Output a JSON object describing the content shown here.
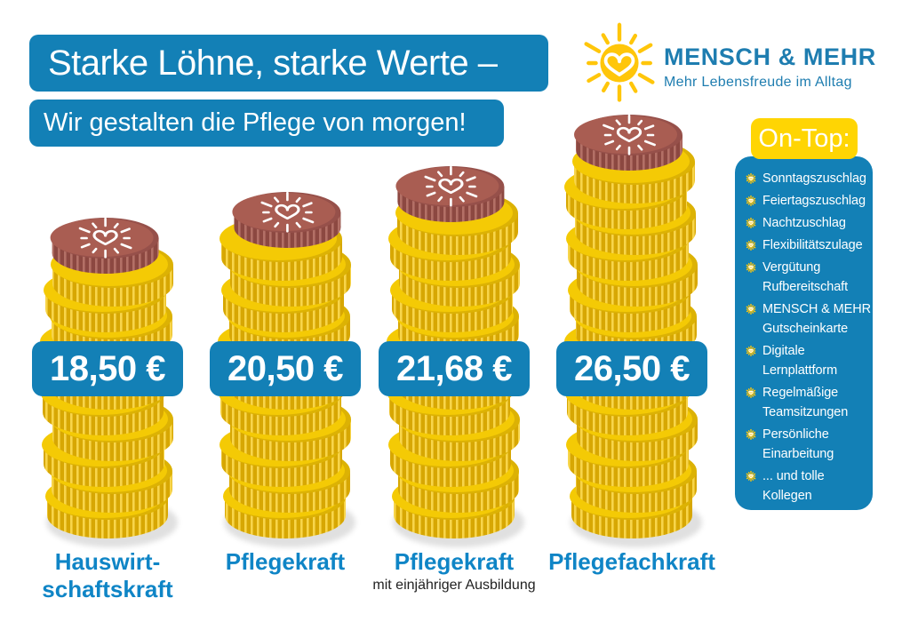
{
  "header": {
    "title": "Starke Löhne, starke Werte –",
    "subtitle": "Wir gestalten die Pflege von morgen!"
  },
  "logo": {
    "name": "MENSCH & MEHR",
    "tagline": "Mehr Lebensfreude im Alltag",
    "icon": "sun-heart-logo-icon"
  },
  "on_top": {
    "label": "On-Top:",
    "bullet_icon": "sun-heart-bullet-icon",
    "items": [
      "Sonntagszuschlag",
      "Feiertagszuschlag",
      "Nachtzuschlag",
      "Flexibilitätszulage",
      "Vergütung Rufbereitschaft",
      "MENSCH & MEHR Gutscheinkarte",
      "Digitale Lernplattform",
      "Regelmäßige Teamsitzungen",
      "Persönliche Einarbeitung",
      "... und tolle Kollegen"
    ]
  },
  "chart_data": {
    "type": "bar",
    "title": "Starke Löhne, starke Werte – Wir gestalten die Pflege von morgen!",
    "categories": [
      "Hauswirtschaftskraft",
      "Pflegekraft",
      "Pflegekraft mit einjähriger Ausbildung",
      "Pflegefachkraft"
    ],
    "values": [
      18.5,
      20.5,
      21.68,
      26.5
    ],
    "bars": [
      {
        "label_lines": [
          "Hauswirt-",
          "schaftskraft"
        ],
        "note": "",
        "value": 18.5,
        "value_label": "18,50 €",
        "coins": 10
      },
      {
        "label_lines": [
          "Pflegekraft"
        ],
        "note": "",
        "value": 20.5,
        "value_label": "20,50 €",
        "coins": 11
      },
      {
        "label_lines": [
          "Pflegekraft"
        ],
        "note": "mit einjähriger Ausbildung",
        "value": 21.68,
        "value_label": "21,68 €",
        "coins": 12
      },
      {
        "label_lines": [
          "Pflegefachkraft"
        ],
        "note": "",
        "value": 26.5,
        "value_label": "26,50 €",
        "coins": 14
      }
    ]
  },
  "colors": {
    "primary_blue": "#1380B6",
    "label_blue": "#0F85C6",
    "logo_blue": "#1E7DB0",
    "ontop_yellow": "#FFD503",
    "background": "#FFFFFF",
    "note_text": "#222222",
    "coin_gold_face": "#F4CA05",
    "coin_gold_face_shade": "#DCB204",
    "coin_gold_rim": "#D7A703",
    "coin_gold_rim_stripe": "#F8D54A",
    "coin_brown_face": "#A95D52",
    "coin_brown_face_shade": "#96504A",
    "coin_brown_rim": "#8C4841",
    "coin_brown_rim_stripe": "#B37066",
    "sun_yellow": "#FFC60A"
  }
}
